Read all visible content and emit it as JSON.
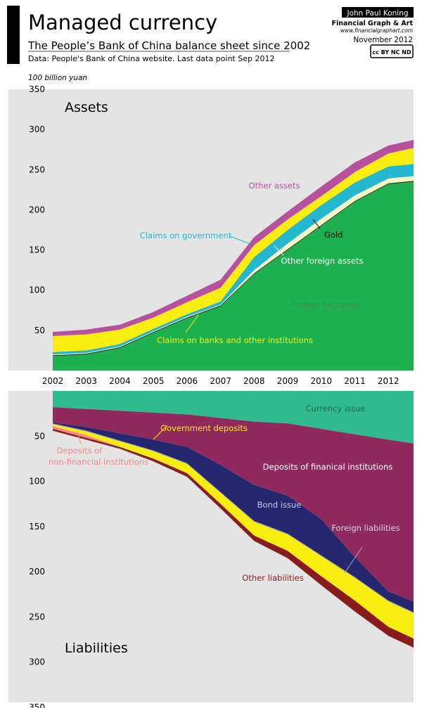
{
  "header": {
    "title": "Managed currency",
    "subtitle": "The People’s Bank of China balance sheet since 2002",
    "source": "Data: People's Bank of China website. Last data point Sep 2012",
    "author": "John Paul Koning",
    "brand": "Financial Graph & Art",
    "website": "www.financialgraphart.com",
    "date": "November 2012",
    "license": "cc BY NC ND"
  },
  "colors": {
    "page": "#ffffff",
    "panel": "#e4e4e4",
    "foreign_exchange": "#1db04e",
    "gold": "#0f2a18",
    "other_foreign_assets": "#f8f6c2",
    "claims_on_government": "#23b7d0",
    "claims_on_banks": "#f7ee10",
    "other_assets": "#b7519f",
    "currency_issue": "#2fbb8e",
    "deposits_financial": "#902a5e",
    "bond_issue": "#25276e",
    "foreign_liabilities": "#a2a9b4",
    "government_deposits": "#f7ee10",
    "deposits_nonfinancial": "#f08a86",
    "other_liabilities": "#891b1b"
  },
  "chart_data": [
    {
      "type": "area",
      "stacked": true,
      "title": "Assets",
      "ylabel": "100 billion yuan",
      "ylim": [
        0,
        350
      ],
      "yticks": [
        50,
        100,
        150,
        200,
        250,
        300,
        350
      ],
      "xlim": [
        2002,
        2012.75
      ],
      "xticks": [
        2002,
        2003,
        2004,
        2005,
        2006,
        2007,
        2008,
        2009,
        2010,
        2011,
        2012
      ],
      "grid": false,
      "x": [
        2002,
        2003,
        2004,
        2005,
        2006,
        2007,
        2008,
        2009,
        2010,
        2011,
        2012,
        2012.75
      ],
      "series": [
        {
          "name": "Foreign Exchange",
          "color_key": "foreign_exchange",
          "label_color": "#3d8a5a",
          "values": [
            18,
            20,
            28,
            47,
            65,
            80,
            120,
            150,
            180,
            210,
            232,
            235
          ]
        },
        {
          "name": "Gold",
          "color_key": "gold",
          "label_color": "#000000",
          "values": [
            1,
            1,
            1,
            1,
            1,
            1,
            1,
            1,
            1,
            1,
            1,
            1
          ]
        },
        {
          "name": "Other foreign assets",
          "color_key": "other_foreign_assets",
          "label_color": "#ffffff",
          "values": [
            1,
            1,
            1,
            1,
            1,
            1,
            4,
            7,
            8,
            7,
            6,
            6
          ]
        },
        {
          "name": "Claims on government",
          "color_key": "claims_on_government",
          "label_color": "#23b7d0",
          "values": [
            3,
            3,
            3,
            3,
            3,
            4,
            16,
            17,
            17,
            16,
            15,
            15
          ]
        },
        {
          "name": "Claims on banks and other institutions",
          "color_key": "claims_on_banks",
          "label_color": "#f7ee10",
          "values": [
            20,
            20,
            18,
            14,
            15,
            17,
            15,
            13,
            11,
            13,
            16,
            20
          ]
        },
        {
          "name": "Other assets",
          "color_key": "other_assets",
          "label_color": "#b7519f",
          "values": [
            5,
            6,
            6,
            7,
            8,
            10,
            10,
            10,
            12,
            12,
            10,
            10
          ]
        }
      ]
    },
    {
      "type": "area",
      "stacked": true,
      "inverted_y": true,
      "title": "Liabilities",
      "ylim": [
        0,
        350
      ],
      "yticks": [
        50,
        100,
        150,
        200,
        250,
        300,
        350
      ],
      "xlim": [
        2002,
        2012.75
      ],
      "grid": false,
      "x": [
        2002,
        2003,
        2004,
        2005,
        2006,
        2007,
        2008,
        2009,
        2010,
        2011,
        2012,
        2012.75
      ],
      "series": [
        {
          "name": "Currency issue",
          "color_key": "currency_issue",
          "label_color": "#1f6b52",
          "values": [
            18,
            20,
            22,
            24,
            26,
            30,
            34,
            36,
            42,
            48,
            54,
            58
          ]
        },
        {
          "name": "Deposits of finanical institutions",
          "color_key": "deposits_financial",
          "label_color": "#ffffff",
          "values": [
            17,
            20,
            25,
            30,
            36,
            52,
            70,
            80,
            100,
            136,
            168,
            175
          ]
        },
        {
          "name": "Bond issue",
          "color_key": "bond_issue",
          "label_color": "#c8c8e8",
          "values": [
            1,
            4,
            8,
            12,
            18,
            30,
            40,
            42,
            40,
            22,
            10,
            12
          ]
        },
        {
          "name": "Foreign liabilities",
          "color_key": "foreign_liabilities",
          "label_color": "#d0d6de",
          "values": [
            1,
            1,
            1,
            1,
            1,
            1,
            1,
            1,
            1,
            1,
            1,
            1
          ]
        },
        {
          "name": "Government deposits",
          "color_key": "government_deposits",
          "label_color": "#f7ee10",
          "values": [
            2,
            4,
            6,
            8,
            10,
            12,
            15,
            18,
            22,
            25,
            28,
            28
          ]
        },
        {
          "name": "Deposits of non-financial institutions",
          "color_key": "deposits_nonfinancial",
          "label_color": "#f08a86",
          "values": [
            3,
            3,
            0,
            0,
            0,
            0,
            0,
            0,
            0,
            0,
            0,
            0
          ]
        },
        {
          "name": "Other liabilities",
          "color_key": "other_liabilities",
          "label_color": "#891b1b",
          "values": [
            2,
            2,
            2,
            3,
            4,
            5,
            6,
            8,
            10,
            12,
            10,
            10
          ]
        }
      ]
    }
  ]
}
